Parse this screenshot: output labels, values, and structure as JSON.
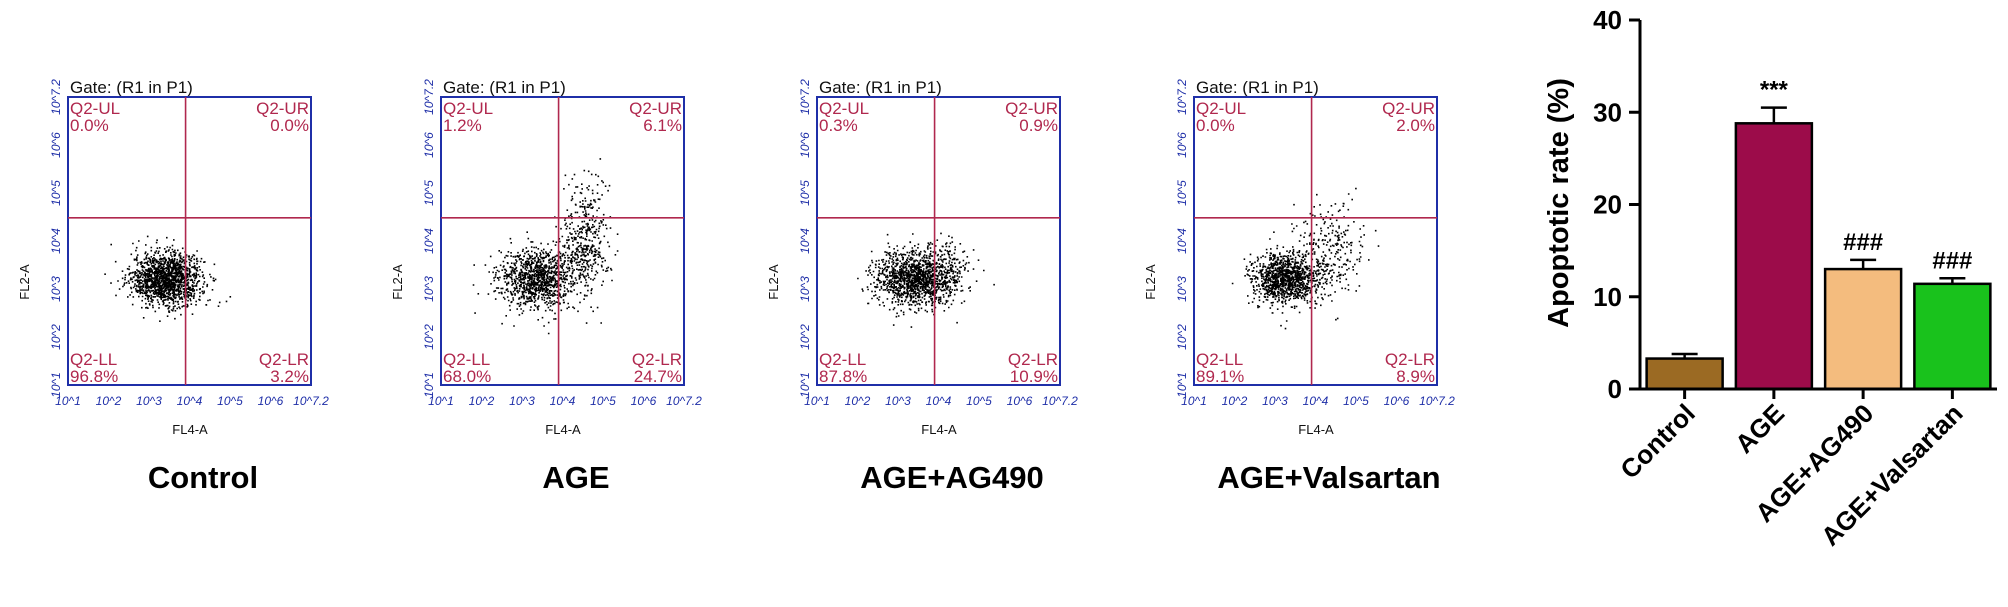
{
  "chart_data": [
    {
      "type": "scatter",
      "gate": "Gate: (R1 in P1)",
      "xlabel": "FL4-A",
      "ylabel": "FL2-A",
      "ticks": [
        "10^1",
        "10^2",
        "10^3",
        "10^4",
        "10^5",
        "10^6",
        "10^7.2"
      ],
      "xlim_log10": [
        1,
        7.2
      ],
      "ylim_log10": [
        1,
        7.2
      ],
      "gate_cut_log10": {
        "x": 4.0,
        "y": 4.6
      },
      "condition": "Control",
      "quadrants": {
        "UL": "0.0%",
        "UR": "0.0%",
        "LL": "96.8%",
        "LR": "3.2%"
      },
      "quadrant_labels": {
        "UL": "Q2-UL",
        "UR": "Q2-UR",
        "LL": "Q2-LL",
        "LR": "Q2-LR"
      },
      "color": "#000000"
    },
    {
      "type": "scatter",
      "gate": "Gate: (R1 in P1)",
      "xlabel": "FL4-A",
      "ylabel": "FL2-A",
      "ticks": [
        "10^1",
        "10^2",
        "10^3",
        "10^4",
        "10^5",
        "10^6",
        "10^7.2"
      ],
      "xlim_log10": [
        1,
        7.2
      ],
      "ylim_log10": [
        1,
        7.2
      ],
      "gate_cut_log10": {
        "x": 4.0,
        "y": 4.6
      },
      "condition": "AGE",
      "quadrants": {
        "UL": "1.2%",
        "UR": "6.1%",
        "LL": "68.0%",
        "LR": "24.7%"
      },
      "quadrant_labels": {
        "UL": "Q2-UL",
        "UR": "Q2-UR",
        "LL": "Q2-LL",
        "LR": "Q2-LR"
      },
      "color": "#000000"
    },
    {
      "type": "scatter",
      "gate": "Gate: (R1 in P1)",
      "xlabel": "FL4-A",
      "ylabel": "FL2-A",
      "ticks": [
        "10^1",
        "10^2",
        "10^3",
        "10^4",
        "10^5",
        "10^6",
        "10^7.2"
      ],
      "xlim_log10": [
        1,
        7.2
      ],
      "ylim_log10": [
        1,
        7.2
      ],
      "gate_cut_log10": {
        "x": 4.0,
        "y": 4.6
      },
      "condition": "AGE+AG490",
      "quadrants": {
        "UL": "0.3%",
        "UR": "0.9%",
        "LL": "87.8%",
        "LR": "10.9%"
      },
      "quadrant_labels": {
        "UL": "Q2-UL",
        "UR": "Q2-UR",
        "LL": "Q2-LL",
        "LR": "Q2-LR"
      },
      "color": "#000000"
    },
    {
      "type": "scatter",
      "gate": "Gate: (R1 in P1)",
      "xlabel": "FL4-A",
      "ylabel": "FL2-A",
      "ticks": [
        "10^1",
        "10^2",
        "10^3",
        "10^4",
        "10^5",
        "10^6",
        "10^7.2"
      ],
      "xlim_log10": [
        1,
        7.2
      ],
      "ylim_log10": [
        1,
        7.2
      ],
      "gate_cut_log10": {
        "x": 4.0,
        "y": 4.6
      },
      "condition": "AGE+Valsartan",
      "quadrants": {
        "UL": "0.0%",
        "UR": "2.0%",
        "LL": "89.1%",
        "LR": "8.9%"
      },
      "quadrant_labels": {
        "UL": "Q2-UL",
        "UR": "Q2-UR",
        "LL": "Q2-LL",
        "LR": "Q2-LR"
      },
      "color": "#000000"
    },
    {
      "type": "bar",
      "categories": [
        "Control",
        "AGE",
        "AGE+AG490",
        "AGE+Valsartan"
      ],
      "values": [
        3.3,
        28.8,
        13.0,
        11.4
      ],
      "errors": [
        0.5,
        1.7,
        1.0,
        0.6
      ],
      "significance": [
        "",
        "***",
        "###",
        "###"
      ],
      "colors": [
        "#9b6a23",
        "#9c0c4a",
        "#f4bc7e",
        "#19c21c"
      ],
      "xlabel": "",
      "ylabel": "Apoptotic rate (%)",
      "ylim": [
        0,
        40
      ],
      "yticks": [
        0,
        10,
        20,
        30,
        40
      ],
      "grid": false
    }
  ]
}
